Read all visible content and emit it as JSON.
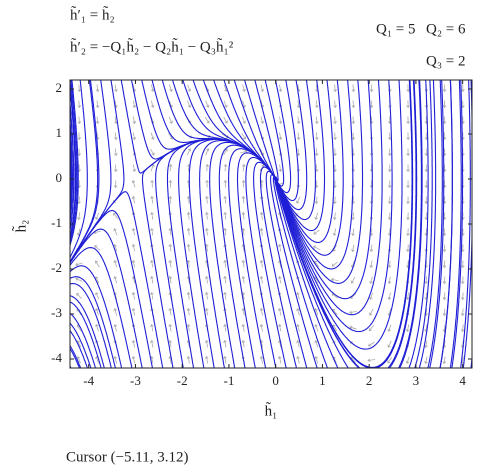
{
  "chart_data": {
    "type": "phase-portrait",
    "equations": [
      "h̃′₁ = h̃₂",
      "h̃′₂ = −Q₁h̃₂ − Q₂h̃₁ − Q₃h̃₁²"
    ],
    "parameters": [
      {
        "label": "Q₁ = 5",
        "value": 5
      },
      {
        "label": "Q₂ = 6",
        "value": 6
      },
      {
        "label": "Q₃ = 2",
        "value": 2
      }
    ],
    "x_label": "h̃₁",
    "y_label": "h̃₂",
    "xlim": [
      -4.4,
      4.2
    ],
    "ylim": [
      -4.2,
      2.2
    ],
    "xticks": [
      -4,
      -3,
      -2,
      -1,
      0,
      1,
      2,
      3,
      4
    ],
    "yticks": [
      -4,
      -3,
      -2,
      -1,
      0,
      1,
      2
    ],
    "color": "#1f1fd6",
    "arrow_color": "#aaaaaa",
    "status": "Cursor (−5.11, 3.12)"
  }
}
